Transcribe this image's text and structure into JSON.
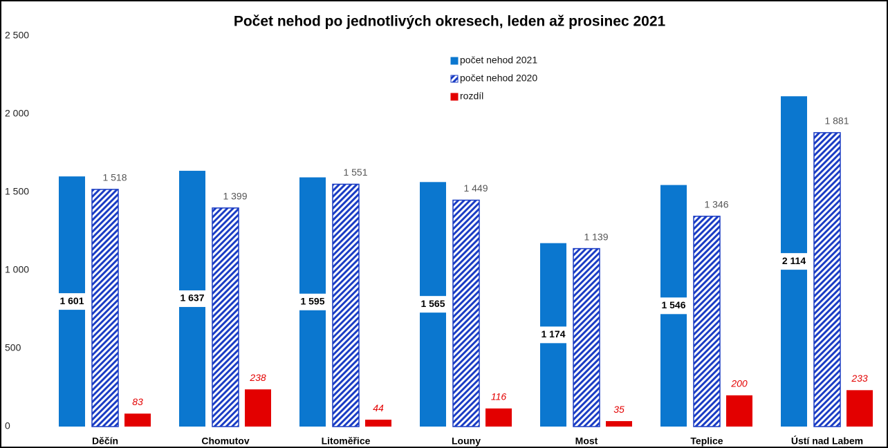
{
  "chart_data": {
    "type": "bar",
    "title": "Počet nehod po jednotlivých okresech, leden až prosinec 2021",
    "categories": [
      "Děčín",
      "Chomutov",
      "Litoměřice",
      "Louny",
      "Most",
      "Teplice",
      "Ústí nad Labem"
    ],
    "series": [
      {
        "name": "počet nehod 2021",
        "color": "#0b77cf",
        "pattern": "solid",
        "values": [
          1601,
          1637,
          1595,
          1565,
          1174,
          1546,
          2114
        ],
        "value_labels": [
          "1 601",
          "1 637",
          "1 595",
          "1 565",
          "1 174",
          "1 546",
          "2 114"
        ]
      },
      {
        "name": "počet nehod 2020",
        "color": "#1a3cc4",
        "pattern": "hatch",
        "values": [
          1518,
          1399,
          1551,
          1449,
          1139,
          1346,
          1881
        ],
        "value_labels": [
          "1 518",
          "1 399",
          "1 551",
          "1 449",
          "1 139",
          "1 346",
          "1 881"
        ]
      },
      {
        "name": "rozdíl",
        "color": "#e30000",
        "pattern": "solid",
        "values": [
          83,
          238,
          44,
          116,
          35,
          200,
          233
        ]
      }
    ],
    "ylim": [
      0,
      2500
    ],
    "yticks": [
      0,
      500,
      {
        "value": 1000,
        "label": "1 000"
      },
      {
        "value": 1500,
        "label": "1 500"
      },
      {
        "value": 2000,
        "label": "2 000"
      },
      {
        "value": 2500,
        "label": "2 500"
      }
    ],
    "grid": false
  }
}
